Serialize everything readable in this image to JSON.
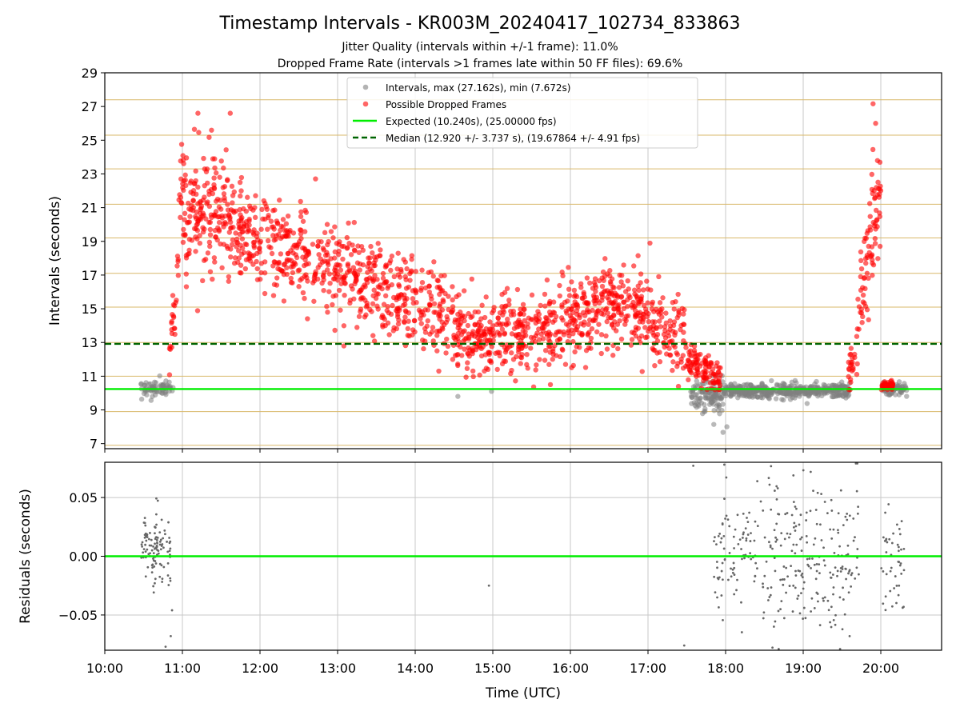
{
  "figure": {
    "title": "Timestamp Intervals - KR003M_20240417_102734_833863",
    "subtitle_1": "Jitter Quality (intervals within +/-1 frame): 11.0%",
    "subtitle_2": "Dropped Frame Rate (intervals >1 frames late within 50 FF files): 69.6%",
    "colors": {
      "normal_points": "#808080",
      "dropped_points": "#ff0000",
      "expected_line": "#00ee00",
      "median_line": "#006400",
      "frame_grid": "#d9b86a",
      "time_grid": "#c8c8c8"
    }
  },
  "chart_data": [
    {
      "type": "scatter",
      "name": "intervals",
      "xlabel": "",
      "ylabel": "Intervals (seconds)",
      "xlim": [
        "10:00",
        "20:47"
      ],
      "ylim": [
        6.7,
        29
      ],
      "x_ticks": [
        "10:00",
        "11:00",
        "12:00",
        "13:00",
        "14:00",
        "15:00",
        "16:00",
        "17:00",
        "18:00",
        "19:00",
        "20:00"
      ],
      "y_ticks": [
        7,
        9,
        11,
        13,
        15,
        17,
        19,
        21,
        23,
        25,
        27,
        29
      ],
      "y_tick_labels": [
        "7",
        "9",
        "11",
        "13",
        "15",
        "17",
        "19",
        "21",
        "23",
        "25",
        "27",
        "29"
      ],
      "legend_position": "top-center",
      "legend": [
        "Intervals, max (27.162s), min (7.672s)",
        "Possible Dropped Frames",
        "Expected (10.240s), (25.00000 fps)",
        "Median (12.920 +/- 3.737 s), (19.67864 +/- 4.91 fps)"
      ],
      "expected_interval": 10.24,
      "median_interval": 12.92,
      "frame_grid_lines": [
        6.9,
        8.9,
        11.0,
        13.0,
        15.1,
        17.1,
        19.2,
        21.2,
        23.3,
        25.3,
        27.4
      ],
      "normal_clusters": [
        {
          "from": "10:28",
          "to": "10:53",
          "mean": 10.3,
          "spread": 0.4,
          "count": 70
        },
        {
          "from": "17:33",
          "to": "17:58",
          "mean": 9.9,
          "spread": 0.8,
          "count": 120
        },
        {
          "from": "17:58",
          "to": "19:36",
          "mean": 10.15,
          "spread": 0.35,
          "count": 450
        },
        {
          "from": "20:01",
          "to": "20:20",
          "mean": 10.25,
          "spread": 0.35,
          "count": 60
        }
      ],
      "normal_outliers": [
        {
          "x": "17:58",
          "y": 7.67
        },
        {
          "x": "18:01",
          "y": 8.0
        },
        {
          "x": "14:33",
          "y": 9.8
        },
        {
          "x": "14:59",
          "y": 10.1
        }
      ],
      "dropped_clusters": [
        {
          "from": "10:50",
          "to": "10:57",
          "mean_start": 12.5,
          "mean_end": 17.5,
          "spread": 1.2,
          "count": 25
        },
        {
          "from": "10:57",
          "to": "11:40",
          "mean_start": 21.0,
          "mean_end": 20.5,
          "spread": 2.2,
          "count": 200
        },
        {
          "from": "11:40",
          "to": "12:40",
          "mean_start": 19.5,
          "mean_end": 18.0,
          "spread": 2.0,
          "count": 230
        },
        {
          "from": "12:40",
          "to": "13:40",
          "mean_start": 18.0,
          "mean_end": 16.0,
          "spread": 2.0,
          "count": 220
        },
        {
          "from": "13:40",
          "to": "14:30",
          "mean_start": 16.0,
          "mean_end": 14.5,
          "spread": 1.9,
          "count": 170
        },
        {
          "from": "14:30",
          "to": "15:40",
          "mean_start": 13.3,
          "mean_end": 13.8,
          "spread": 1.5,
          "count": 280
        },
        {
          "from": "15:40",
          "to": "16:40",
          "mean_start": 13.8,
          "mean_end": 15.5,
          "spread": 1.7,
          "count": 260
        },
        {
          "from": "16:40",
          "to": "17:30",
          "mean_start": 15.5,
          "mean_end": 13.0,
          "spread": 1.7,
          "count": 180
        },
        {
          "from": "17:30",
          "to": "17:58",
          "mean_start": 12.0,
          "mean_end": 10.6,
          "spread": 0.8,
          "count": 100
        },
        {
          "from": "19:35",
          "to": "19:42",
          "mean_start": 11.0,
          "mean_end": 12.5,
          "spread": 1.0,
          "count": 25
        },
        {
          "from": "19:42",
          "to": "20:00",
          "mean_start": 14.5,
          "mean_end": 22.0,
          "spread": 2.5,
          "count": 80
        },
        {
          "from": "20:00",
          "to": "20:10",
          "mean_start": 10.5,
          "mean_end": 10.5,
          "spread": 0.2,
          "count": 40
        }
      ],
      "dropped_outliers": [
        {
          "x": "19:54",
          "y": 27.16
        },
        {
          "x": "19:56",
          "y": 26.0
        },
        {
          "x": "11:12",
          "y": 26.6
        },
        {
          "x": "11:37",
          "y": 26.6
        }
      ]
    },
    {
      "type": "scatter",
      "name": "residuals",
      "xlabel": "Time (UTC)",
      "ylabel": "Residuals (seconds)",
      "xlim": [
        "10:00",
        "20:47"
      ],
      "ylim": [
        -0.08,
        0.08
      ],
      "x_ticks": [
        "10:00",
        "11:00",
        "12:00",
        "13:00",
        "14:00",
        "15:00",
        "16:00",
        "17:00",
        "18:00",
        "19:00",
        "20:00"
      ],
      "y_ticks": [
        -0.05,
        0.0,
        0.05
      ],
      "y_tick_labels": [
        "−0.05",
        "0.00",
        "0.05"
      ],
      "zero_line": 0.0,
      "clusters": [
        {
          "from": "10:28",
          "to": "10:51",
          "mean": 0.005,
          "spread": 0.022,
          "count": 110
        },
        {
          "from": "17:50",
          "to": "19:43",
          "mean": 0.0,
          "spread": 0.045,
          "count": 300
        },
        {
          "from": "20:00",
          "to": "20:18",
          "mean": 0.0,
          "spread": 0.04,
          "count": 45
        }
      ],
      "outliers": [
        {
          "x": "14:57",
          "y": -0.025
        },
        {
          "x": "10:47",
          "y": -0.077
        },
        {
          "x": "10:51",
          "y": -0.068
        },
        {
          "x": "10:52",
          "y": -0.046
        },
        {
          "x": "17:28",
          "y": -0.076
        },
        {
          "x": "17:35",
          "y": 0.077
        },
        {
          "x": "17:59",
          "y": 0.078
        }
      ]
    }
  ]
}
